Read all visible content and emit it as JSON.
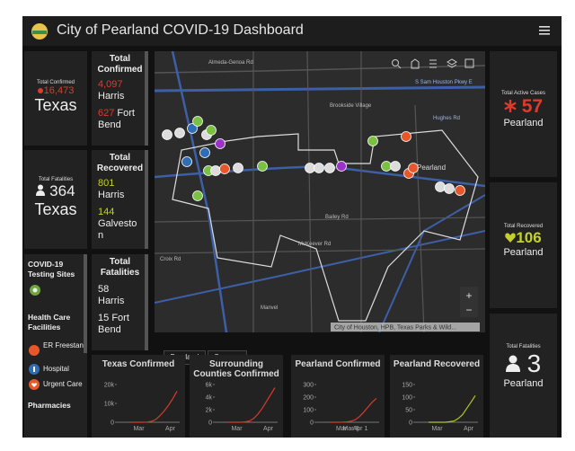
{
  "header": {
    "title": "City of Pearland COVID-19 Dashboard"
  },
  "panels": {
    "texas_confirmed": {
      "label": "Total Confirmed",
      "value": "16,473",
      "region": "Texas"
    },
    "county_confirmed": {
      "label": "Total Confirmed",
      "entries": [
        {
          "value": "4,097",
          "name": "Harris"
        },
        {
          "value": "627",
          "name": "Fort Bend"
        }
      ]
    },
    "texas_fatalities": {
      "label": "Total Fatalities",
      "value": "364",
      "region": "Texas"
    },
    "county_recovered": {
      "label": "Total Recovered",
      "entries": [
        {
          "value": "801",
          "name": "Harris"
        },
        {
          "value": "144",
          "name": "Galveston"
        }
      ]
    },
    "county_fatalities": {
      "label": "Total Fatalities",
      "entries": [
        {
          "value": "58",
          "name": "Harris"
        },
        {
          "value": "15",
          "name": "Fort Bend"
        }
      ]
    },
    "active_cases": {
      "label": "Total Active Cases",
      "value": "57",
      "region": "Pearland"
    },
    "pearland_recovered": {
      "label": "Total Recovered",
      "value": "106",
      "region": "Pearland"
    },
    "pearland_fatalities": {
      "label": "Total Fatalities",
      "value": "3",
      "region": "Pearland"
    }
  },
  "legend": {
    "testing_title": "COVID-19 Testing Sites",
    "health_title": "Health Care Facilities",
    "items": [
      "ER Freestanding",
      "Hospital",
      "Urgent Care"
    ],
    "pharmacies": "Pharmacies"
  },
  "map": {
    "labels": [
      "Almeda-Genoa Rd",
      "S Sam Houston Pkwy E",
      "Brookside Village",
      "Pearland",
      "Bailey Rd",
      "McKeever Rd",
      "Croix Rd",
      "Manvel",
      "Hughes Rd"
    ],
    "attribution": "City of Houston, HPB, Texas Parks & Wild...",
    "zoom": [
      "+",
      "−"
    ],
    "tabs": [
      "Pearland",
      "Sources"
    ]
  },
  "charts": [
    {
      "title": "Texas Confirmed",
      "color": "#d93a2b",
      "ylim": [
        0,
        20000
      ],
      "yticks": [
        0,
        {
          "value": 10000,
          "label": "10k"
        },
        {
          "value": 20000,
          "label": "20k"
        }
      ],
      "xticks": [
        "Mar",
        "Apr"
      ],
      "values": [
        0,
        0,
        0,
        0,
        100,
        500,
        1500,
        3500,
        6000,
        9000,
        12500,
        16473
      ]
    },
    {
      "title": "Surrounding Counties Confirmed",
      "color": "#d93a2b",
      "ylim": [
        0,
        6000
      ],
      "yticks": [
        0,
        {
          "value": 2000,
          "label": "2k"
        },
        {
          "value": 4000,
          "label": "4k"
        },
        {
          "value": 6000,
          "label": "6k"
        }
      ],
      "xticks": [
        "Mar",
        "Apr"
      ],
      "values": [
        0,
        0,
        0,
        0,
        50,
        200,
        600,
        1300,
        2200,
        3300,
        4400,
        5500
      ]
    },
    {
      "title": "Pearland Confirmed",
      "color": "#d93a2b",
      "ylim": [
        0,
        300
      ],
      "yticks": [
        0,
        100,
        200,
        300
      ],
      "xticks": [
        "Mar",
        "Mar 8",
        "Apr 1"
      ],
      "values": [
        0,
        0,
        0,
        1,
        3,
        8,
        20,
        45,
        80,
        120,
        160,
        190
      ]
    },
    {
      "title": "Pearland Recovered",
      "color": "#b5c426",
      "ylim": [
        0,
        150
      ],
      "yticks": [
        0,
        50,
        100,
        150
      ],
      "xticks": [
        "Mar",
        "Apr"
      ],
      "values": [
        0,
        0,
        0,
        0,
        0,
        2,
        5,
        15,
        30,
        55,
        80,
        106
      ]
    }
  ]
}
